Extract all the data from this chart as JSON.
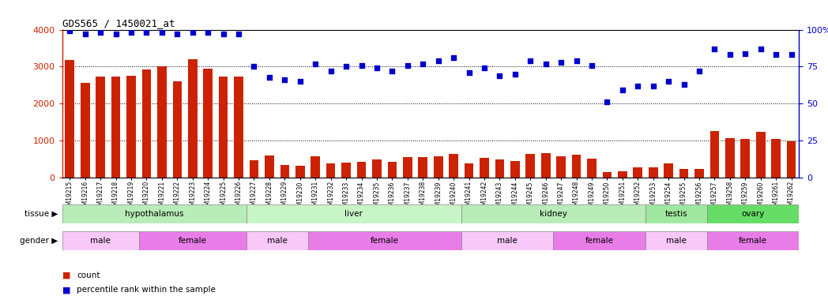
{
  "title": "GDS565 / 1450021_at",
  "samples": [
    "GSM19215",
    "GSM19216",
    "GSM19217",
    "GSM19218",
    "GSM19219",
    "GSM19220",
    "GSM19221",
    "GSM19222",
    "GSM19223",
    "GSM19224",
    "GSM19225",
    "GSM19226",
    "GSM19227",
    "GSM19228",
    "GSM19229",
    "GSM19230",
    "GSM19231",
    "GSM19232",
    "GSM19233",
    "GSM19234",
    "GSM19235",
    "GSM19236",
    "GSM19237",
    "GSM19238",
    "GSM19239",
    "GSM19240",
    "GSM19241",
    "GSM19242",
    "GSM19243",
    "GSM19244",
    "GSM19245",
    "GSM19246",
    "GSM19247",
    "GSM19248",
    "GSM19249",
    "GSM19250",
    "GSM19251",
    "GSM19252",
    "GSM19253",
    "GSM19254",
    "GSM19255",
    "GSM19256",
    "GSM19257",
    "GSM19258",
    "GSM19259",
    "GSM19260",
    "GSM19261",
    "GSM19262"
  ],
  "counts": [
    3180,
    2550,
    2730,
    2730,
    2760,
    2930,
    3000,
    2600,
    3200,
    2950,
    2740,
    2740,
    470,
    600,
    340,
    310,
    580,
    380,
    400,
    420,
    490,
    430,
    550,
    560,
    580,
    630,
    380,
    530,
    490,
    450,
    650,
    670,
    580,
    620,
    520,
    150,
    170,
    280,
    280,
    390,
    230,
    230,
    1250,
    1060,
    1050,
    1230,
    1040,
    980
  ],
  "percentile": [
    99,
    97,
    98,
    97,
    98,
    98,
    98,
    97,
    98,
    98,
    97,
    97,
    75,
    68,
    66,
    65,
    77,
    72,
    75,
    76,
    74,
    72,
    76,
    77,
    79,
    81,
    71,
    74,
    69,
    70,
    79,
    77,
    78,
    79,
    76,
    51,
    59,
    62,
    62,
    65,
    63,
    72,
    87,
    83,
    84,
    87,
    83,
    83
  ],
  "bar_color": "#cc2200",
  "dot_color": "#0000cc",
  "left_ylim": [
    0,
    4000
  ],
  "right_ylim": [
    0,
    100
  ],
  "left_yticks": [
    0,
    1000,
    2000,
    3000,
    4000
  ],
  "right_yticks": [
    0,
    25,
    50,
    75,
    100
  ],
  "tissue_bands": [
    {
      "label": "hypothalamus",
      "start": 0,
      "end": 11,
      "color": "#b8ecb8"
    },
    {
      "label": "liver",
      "start": 12,
      "end": 25,
      "color": "#c8f5c8"
    },
    {
      "label": "kidney",
      "start": 26,
      "end": 37,
      "color": "#b8ecb8"
    },
    {
      "label": "testis",
      "start": 38,
      "end": 41,
      "color": "#a0e8a0"
    },
    {
      "label": "ovary",
      "start": 42,
      "end": 47,
      "color": "#66dd66"
    }
  ],
  "gender_bands": [
    {
      "label": "male",
      "start": 0,
      "end": 4,
      "color": "#f8c8f8"
    },
    {
      "label": "female",
      "start": 5,
      "end": 11,
      "color": "#e87de8"
    },
    {
      "label": "male",
      "start": 12,
      "end": 15,
      "color": "#f8c8f8"
    },
    {
      "label": "female",
      "start": 16,
      "end": 25,
      "color": "#e87de8"
    },
    {
      "label": "male",
      "start": 26,
      "end": 31,
      "color": "#f8c8f8"
    },
    {
      "label": "female",
      "start": 32,
      "end": 37,
      "color": "#e87de8"
    },
    {
      "label": "male",
      "start": 38,
      "end": 41,
      "color": "#f8c8f8"
    },
    {
      "label": "female",
      "start": 42,
      "end": 47,
      "color": "#e87de8"
    }
  ],
  "background_color": "#ffffff"
}
